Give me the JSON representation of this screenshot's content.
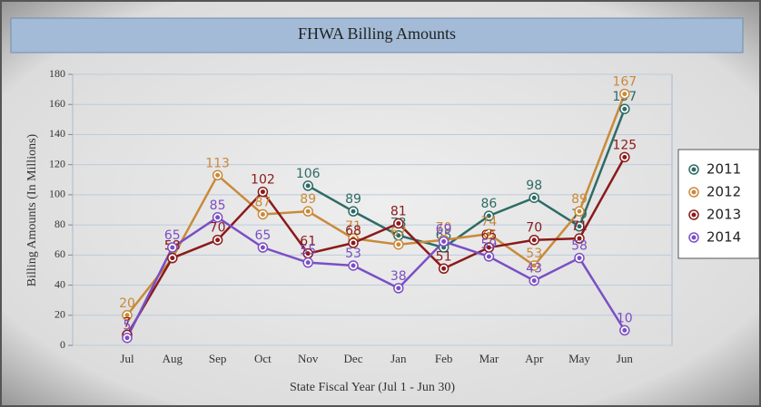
{
  "chart_data": {
    "type": "line",
    "title": "FHWA Billing Amounts",
    "x_label": "State Fiscal Year (Jul 1 - Jun 30)",
    "y_label": "Billing Amounts (In Millions)",
    "categories": [
      "Jul",
      "Aug",
      "Sep",
      "Oct",
      "Nov",
      "Dec",
      "Jan",
      "Feb",
      "Mar",
      "Apr",
      "May",
      "Jun"
    ],
    "series": [
      {
        "name": "2011",
        "color": "#2e6b66",
        "values": [
          null,
          null,
          null,
          null,
          106,
          89,
          73,
          65,
          86,
          98,
          79,
          157
        ]
      },
      {
        "name": "2012",
        "color": "#c98a3a",
        "values": [
          20,
          58,
          113,
          87,
          89,
          71,
          67,
          70,
          74,
          53,
          89,
          167
        ]
      },
      {
        "name": "2013",
        "color": "#8b1a1a",
        "values": [
          7,
          58,
          70,
          102,
          61,
          68,
          81,
          51,
          65,
          70,
          71,
          125
        ]
      },
      {
        "name": "2014",
        "color": "#7a4fc4",
        "values": [
          5,
          65,
          85,
          65,
          55,
          53,
          38,
          69,
          59,
          43,
          58,
          10
        ]
      }
    ],
    "ylim": [
      0,
      180
    ],
    "yticks": [
      0,
      20,
      40,
      60,
      80,
      100,
      120,
      140,
      160,
      180
    ],
    "grid": true,
    "legend": "right"
  }
}
